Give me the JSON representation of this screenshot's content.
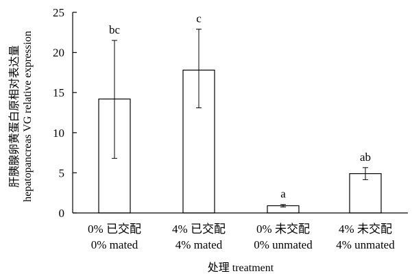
{
  "chart_data": {
    "type": "bar",
    "categories": [
      [
        "0% 已交配",
        "0% mated"
      ],
      [
        "4% 已交配",
        "4% mated"
      ],
      [
        "0% 未交配",
        "0% unmated"
      ],
      [
        "4% 未交配",
        "4% unmated"
      ]
    ],
    "values": [
      14.2,
      17.8,
      0.9,
      4.9
    ],
    "error": [
      [
        6.8,
        21.5
      ],
      [
        13.1,
        22.9
      ],
      [
        0.75,
        1.05
      ],
      [
        4.15,
        5.65
      ]
    ],
    "significance": [
      "bc",
      "c",
      "a",
      "ab"
    ],
    "xlabel": "处理 treatment",
    "ylabel": [
      "肝胰腺卵黄蛋白原相对表达量",
      "hepatopancreas VG relative expression"
    ],
    "ylim": [
      0,
      25
    ],
    "yticks": [
      0,
      5,
      10,
      15,
      20,
      25
    ],
    "grid": false,
    "legend": "none",
    "colors": {
      "bar_fill": "#ffffff",
      "bar_stroke": "#000000",
      "axis": "#000000"
    }
  }
}
